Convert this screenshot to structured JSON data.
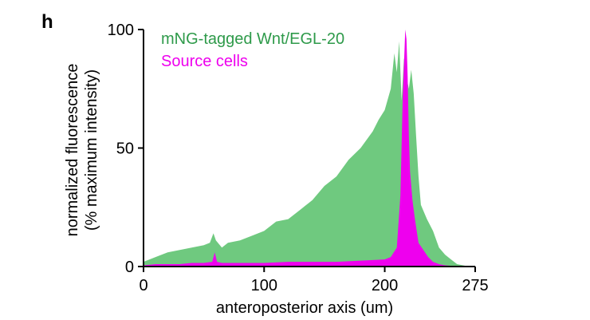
{
  "panel": {
    "label": "h"
  },
  "chart_data": {
    "type": "area",
    "title": "",
    "xlabel": "anteroposterior axis (um)",
    "ylabel_line1": "normalized fluorescence",
    "ylabel_line2": "(% maximum intensity)",
    "xlim": [
      0,
      275
    ],
    "ylim": [
      0,
      100
    ],
    "xticks": [
      0,
      100,
      200,
      275
    ],
    "yticks": [
      0,
      50,
      100
    ],
    "grid": false,
    "legend_position": "top-left",
    "series": [
      {
        "name": "mNG-tagged Wnt/EGL-20",
        "color": "#6fc97f",
        "x": [
          0,
          10,
          20,
          30,
          40,
          50,
          55,
          58,
          60,
          65,
          70,
          80,
          90,
          100,
          110,
          120,
          130,
          140,
          150,
          160,
          170,
          180,
          190,
          195,
          200,
          205,
          208,
          210,
          212,
          214,
          216,
          218,
          220,
          222,
          224,
          226,
          228,
          230,
          235,
          240,
          245,
          250,
          255,
          260,
          265,
          270,
          275
        ],
        "values": [
          2,
          4,
          6,
          7,
          8,
          9,
          10,
          14,
          11,
          8,
          10,
          11,
          13,
          15,
          19,
          20,
          24,
          28,
          34,
          38,
          45,
          50,
          57,
          62,
          66,
          75,
          90,
          82,
          95,
          70,
          88,
          80,
          75,
          83,
          73,
          55,
          38,
          26,
          20,
          15,
          8,
          5,
          3,
          1,
          0.5,
          0,
          0
        ]
      },
      {
        "name": "Source cells",
        "color": "#ee00ee",
        "x": [
          0,
          10,
          20,
          30,
          40,
          50,
          57,
          59,
          61,
          65,
          80,
          100,
          120,
          140,
          160,
          180,
          200,
          205,
          210,
          213,
          215,
          217,
          218,
          219,
          220,
          221,
          223,
          225,
          228,
          232,
          236,
          240,
          245,
          250,
          255,
          260,
          275
        ],
        "values": [
          0.5,
          1,
          1,
          1,
          1.5,
          1.5,
          2,
          6,
          2,
          1.5,
          1.5,
          1.5,
          2,
          2,
          2,
          2.5,
          3,
          4,
          8,
          30,
          72,
          100,
          96,
          80,
          55,
          40,
          28,
          20,
          10,
          7,
          4,
          2,
          1,
          0.5,
          0.3,
          0,
          0
        ]
      }
    ]
  }
}
